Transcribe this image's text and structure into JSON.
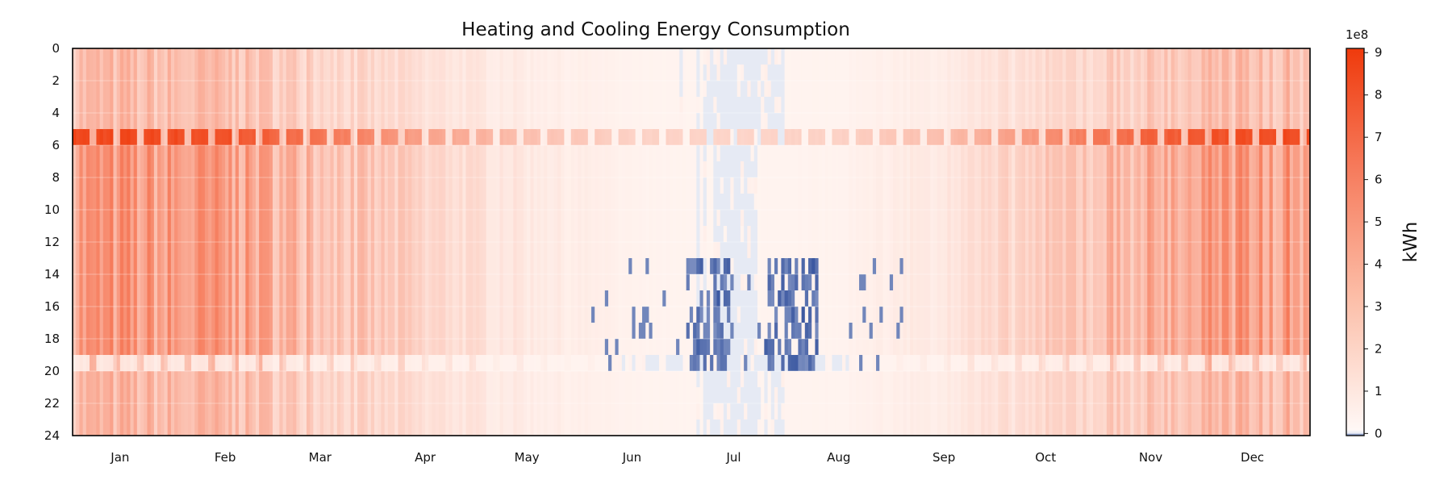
{
  "chart_data": {
    "type": "heatmap",
    "title": "Heating and Cooling Energy Consumption",
    "xlabel": "",
    "ylabel": "",
    "x_tick_labels": [
      "Jan",
      "Feb",
      "Mar",
      "Apr",
      "May",
      "Jun",
      "Jul",
      "Aug",
      "Sep",
      "Oct",
      "Nov",
      "Dec"
    ],
    "y_tick_labels": [
      "0",
      "2",
      "4",
      "6",
      "8",
      "10",
      "12",
      "14",
      "16",
      "18",
      "20",
      "22",
      "24"
    ],
    "y_range": [
      0,
      24
    ],
    "x_range_days": [
      1,
      365
    ],
    "colorbar": {
      "label": "kWh",
      "exponent": "1e8",
      "tick_labels": [
        "0",
        "1",
        "2",
        "3",
        "4",
        "5",
        "6",
        "7",
        "8",
        "9"
      ],
      "range": [
        -0.05,
        9.1
      ],
      "colors": {
        "negative": "#3a57a0",
        "zero": "#e6eaf4",
        "low": "#fff4f0",
        "high": "#ef3a0c"
      }
    },
    "seasonal_heating_profile_1e8kWh": {
      "Jan": 4.5,
      "Feb": 4.2,
      "Mar": 2.8,
      "Apr": 1.5,
      "May": 0.6,
      "Jun": 0.1,
      "Jul": 0.0,
      "Aug": 0.1,
      "Sep": 0.7,
      "Oct": 2.0,
      "Nov": 3.6,
      "Dec": 4.4
    },
    "hour_6_peak_1e8kWh": {
      "winter": 8.8,
      "summer": 1.5
    },
    "summer_cooling_min_1e8kWh": -0.05,
    "grid": true
  }
}
